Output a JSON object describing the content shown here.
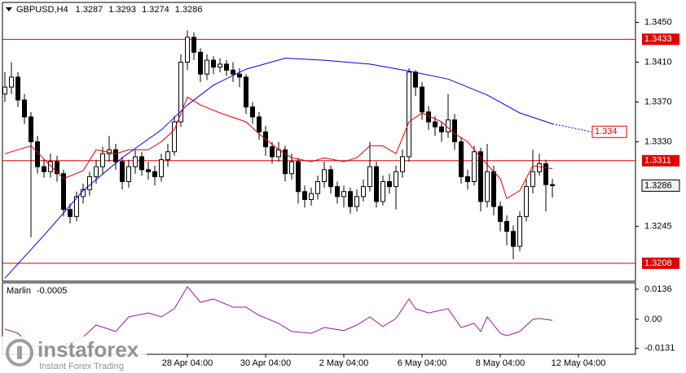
{
  "chart_data": [
    {
      "type": "candlestick",
      "symbol": "GBPUSD,H4",
      "open": [
        1.3378,
        1.3385,
        1.3395,
        1.3372,
        1.3355,
        1.333,
        1.3305,
        1.33,
        1.331,
        1.3298,
        1.3262,
        1.3255,
        1.3275,
        1.3282,
        1.3295,
        1.3305,
        1.3318,
        1.3322,
        1.331,
        1.329,
        1.3305,
        1.3315,
        1.3302,
        1.33,
        1.3295,
        1.3312,
        1.332,
        1.335,
        1.341,
        1.3435,
        1.342,
        1.3398,
        1.3412,
        1.3405,
        1.3408,
        1.3402,
        1.3398,
        1.3395,
        1.3365,
        1.3355,
        1.334,
        1.3325,
        1.3315,
        1.3322,
        1.3298,
        1.331,
        1.328,
        1.3272,
        1.3278,
        1.329,
        1.3302,
        1.3285,
        1.3275,
        1.328,
        1.3265,
        1.3275,
        1.3285,
        1.3305,
        1.327,
        1.329,
        1.3285,
        1.33,
        1.3315,
        1.34,
        1.3385,
        1.336,
        1.335,
        1.3345,
        1.334,
        1.3352,
        1.333,
        1.3295,
        1.329,
        1.332,
        1.327,
        1.33,
        1.3265,
        1.325,
        1.324,
        1.3225,
        1.3255,
        1.3285,
        1.33,
        1.3308,
        1.3287
      ],
      "high": [
        1.34,
        1.341,
        1.34,
        1.3378,
        1.336,
        1.3336,
        1.3312,
        1.3318,
        1.3316,
        1.3302,
        1.3268,
        1.328,
        1.3288,
        1.33,
        1.3312,
        1.3325,
        1.3336,
        1.3328,
        1.3315,
        1.3312,
        1.3322,
        1.332,
        1.331,
        1.3306,
        1.3318,
        1.3328,
        1.3356,
        1.3418,
        1.3442,
        1.344,
        1.3424,
        1.3418,
        1.3416,
        1.3414,
        1.3412,
        1.341,
        1.3404,
        1.3398,
        1.337,
        1.336,
        1.3346,
        1.333,
        1.333,
        1.3326,
        1.3318,
        1.3314,
        1.3286,
        1.3284,
        1.3296,
        1.331,
        1.3306,
        1.329,
        1.3286,
        1.3284,
        1.3282,
        1.3292,
        1.333,
        1.331,
        1.3296,
        1.3298,
        1.3306,
        1.3322,
        1.3404,
        1.3402,
        1.339,
        1.3366,
        1.3356,
        1.335,
        1.3378,
        1.3358,
        1.3335,
        1.3302,
        1.3326,
        1.3324,
        1.3328,
        1.3306,
        1.327,
        1.3256,
        1.3246,
        1.326,
        1.3292,
        1.3322,
        1.3318,
        1.3312,
        1.3293
      ],
      "low": [
        1.337,
        1.3378,
        1.3365,
        1.3348,
        1.3234,
        1.3298,
        1.3294,
        1.3294,
        1.329,
        1.3255,
        1.3248,
        1.325,
        1.3268,
        1.3276,
        1.3288,
        1.3298,
        1.331,
        1.3302,
        1.3282,
        1.3284,
        1.3298,
        1.3296,
        1.3292,
        1.3286,
        1.329,
        1.3305,
        1.3316,
        1.3345,
        1.3402,
        1.3412,
        1.339,
        1.3392,
        1.3398,
        1.34,
        1.3396,
        1.339,
        1.3385,
        1.3358,
        1.3348,
        1.3332,
        1.3316,
        1.3308,
        1.331,
        1.329,
        1.3292,
        1.3268,
        1.3264,
        1.3266,
        1.3272,
        1.3284,
        1.3278,
        1.3268,
        1.3264,
        1.3258,
        1.326,
        1.327,
        1.328,
        1.3264,
        1.3266,
        1.3278,
        1.3262,
        1.3294,
        1.331,
        1.3376,
        1.3352,
        1.3342,
        1.3336,
        1.333,
        1.3334,
        1.3322,
        1.3288,
        1.3282,
        1.3286,
        1.326,
        1.3264,
        1.3256,
        1.324,
        1.3226,
        1.3212,
        1.322,
        1.325,
        1.3278,
        1.3296,
        1.326,
        1.3274
      ],
      "close": [
        1.3385,
        1.3395,
        1.3372,
        1.3355,
        1.333,
        1.3305,
        1.33,
        1.331,
        1.3298,
        1.3262,
        1.3255,
        1.3275,
        1.3282,
        1.3295,
        1.3305,
        1.3318,
        1.3322,
        1.331,
        1.329,
        1.3305,
        1.3315,
        1.3302,
        1.33,
        1.3295,
        1.3312,
        1.332,
        1.335,
        1.341,
        1.3435,
        1.342,
        1.3398,
        1.3412,
        1.3405,
        1.3408,
        1.3402,
        1.3398,
        1.3395,
        1.3365,
        1.3355,
        1.334,
        1.3325,
        1.3315,
        1.3322,
        1.3298,
        1.331,
        1.328,
        1.3272,
        1.3278,
        1.329,
        1.3302,
        1.3285,
        1.3275,
        1.328,
        1.3265,
        1.3275,
        1.3285,
        1.3305,
        1.327,
        1.329,
        1.3285,
        1.33,
        1.3315,
        1.34,
        1.3385,
        1.336,
        1.335,
        1.3345,
        1.334,
        1.3352,
        1.333,
        1.3295,
        1.329,
        1.332,
        1.327,
        1.33,
        1.3265,
        1.325,
        1.324,
        1.3225,
        1.3255,
        1.3285,
        1.33,
        1.3308,
        1.3287,
        1.3286
      ],
      "up_color": "#ffffff",
      "down_color": "#000000",
      "candle_outline": "#000000",
      "series": [
        {
          "color": "#e00000",
          "x": [
            0,
            2,
            4,
            7,
            9,
            12,
            14,
            17,
            19,
            22,
            24,
            26,
            28,
            30,
            33,
            37,
            39,
            42,
            44,
            47,
            49,
            52,
            54,
            56,
            58,
            60,
            62,
            64,
            67,
            69,
            71,
            73,
            76,
            77,
            79,
            81,
            84
          ],
          "values": [
            1.3318,
            1.3322,
            1.3326,
            1.3306,
            1.3293,
            1.3301,
            1.3322,
            1.3318,
            1.3322,
            1.3322,
            1.333,
            1.3342,
            1.3375,
            1.3367,
            1.3359,
            1.335,
            1.3338,
            1.3322,
            1.3314,
            1.331,
            1.3314,
            1.331,
            1.3314,
            1.3326,
            1.3326,
            1.3318,
            1.335,
            1.3359,
            1.335,
            1.3338,
            1.333,
            1.3314,
            1.3293,
            1.3273,
            1.3281,
            1.3306,
            1.3303
          ]
        },
        {
          "color": "#0000e0",
          "x": [
            0,
            6,
            12,
            18,
            24,
            28,
            32,
            37,
            43,
            49,
            56,
            62,
            68,
            74,
            79,
            84
          ],
          "values": [
            1.3193,
            1.3236,
            1.3281,
            1.3314,
            1.3342,
            1.3367,
            1.3387,
            1.3403,
            1.3414,
            1.3412,
            1.3408,
            1.3401,
            1.3393,
            1.3377,
            1.3359,
            1.3348
          ]
        },
        {
          "color": "#0000e0",
          "dash": true,
          "x": [
            84,
            90
          ],
          "values": [
            1.3348,
            1.334
          ]
        }
      ],
      "levels": [
        1.3433,
        1.3311,
        1.3208
      ],
      "level_color": "#e00000",
      "xlim": [
        -0.375,
        96.75
      ],
      "ylim": [
        1.319,
        1.347
      ],
      "yticks": [
        {
          "value": 1.345,
          "label": "1.3450"
        },
        {
          "value": 1.341,
          "label": "1.3410"
        },
        {
          "value": 1.337,
          "label": "1.3370"
        },
        {
          "value": 1.333,
          "label": "1.3330"
        },
        {
          "value": 1.3245,
          "label": "1.3245"
        }
      ],
      "xticks": [
        {
          "value": 28,
          "label": "28 Apr 04:00"
        },
        {
          "value": 40,
          "label": "30 Apr 04:00"
        },
        {
          "value": 52,
          "label": "2 May 04:00"
        },
        {
          "value": 64,
          "label": "6 May 04:00"
        },
        {
          "value": 76,
          "label": "8 May 04:00"
        },
        {
          "value": 88,
          "label": "12 May 04:00"
        }
      ]
    },
    {
      "type": "line",
      "title": "Marlin",
      "series": [
        {
          "name": "Marlin",
          "color": "#9a1a9a",
          "x": [
            0,
            2,
            4,
            7,
            9,
            12,
            14,
            17,
            19,
            22,
            24,
            26,
            28,
            30,
            32,
            35,
            37,
            39,
            42,
            44,
            47,
            49,
            52,
            54,
            56,
            58,
            60,
            62,
            63,
            65,
            68,
            70,
            72,
            73,
            74,
            76,
            77,
            79,
            81,
            82,
            84
          ],
          "values": [
            -0.0044,
            -0.0063,
            -0.0118,
            -0.0129,
            -0.0118,
            -0.0081,
            -0.0026,
            -0.0055,
            0.0011,
            0.0029,
            0.0011,
            0.0048,
            0.0147,
            0.0077,
            0.0092,
            0.0055,
            0.0055,
            0.0018,
            -0.0018,
            -0.0055,
            -0.0063,
            -0.0037,
            -0.0051,
            -0.0026,
            0.0011,
            -0.0033,
            0.0004,
            0.0092,
            0.0048,
            0.0029,
            0.0048,
            -0.0037,
            -0.0018,
            -0.0055,
            0.0011,
            -0.0063,
            -0.0074,
            -0.0055,
            0.0,
            0.0004,
            -0.0005
          ]
        }
      ],
      "xlim": [
        -0.375,
        96.75
      ],
      "ylim": [
        -0.0158,
        0.0165
      ],
      "yticks": [
        0.0136,
        {
          "value": 0,
          "label": "0.00"
        },
        -0.0131
      ]
    }
  ],
  "logo": {
    "name": "instaforex",
    "tagline": "Instant Forex Trading"
  }
}
